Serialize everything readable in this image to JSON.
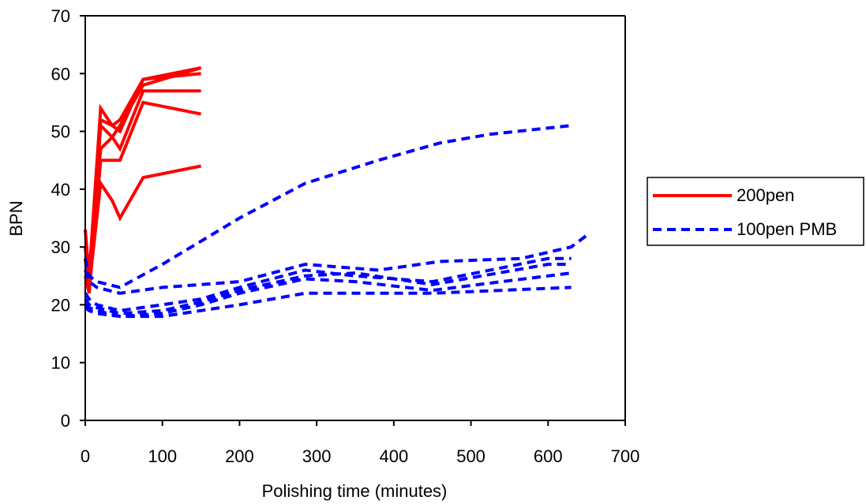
{
  "chart_data": {
    "type": "line",
    "title": "",
    "xlabel": "Polishing time (minutes)",
    "ylabel": "BPN",
    "xlim": [
      0,
      700
    ],
    "ylim": [
      0,
      70
    ],
    "x_ticks": [
      0,
      100,
      200,
      300,
      400,
      500,
      600,
      700
    ],
    "y_ticks": [
      0,
      10,
      20,
      30,
      40,
      50,
      60,
      70
    ],
    "grid": false,
    "legend_position": "right",
    "legend": [
      {
        "label": "200pen",
        "color": "#ff0000",
        "style": "solid"
      },
      {
        "label": "100pen PMB",
        "color": "#0000ff",
        "style": "dashed"
      }
    ],
    "series": [
      {
        "group": "200pen",
        "color": "#ff0000",
        "style": "solid",
        "x": [
          0,
          5,
          20,
          35,
          45,
          75,
          150
        ],
        "y": [
          33,
          25,
          54,
          51,
          50,
          59,
          61
        ]
      },
      {
        "group": "200pen",
        "color": "#ff0000",
        "style": "solid",
        "x": [
          0,
          5,
          20,
          35,
          45,
          75,
          150
        ],
        "y": [
          30,
          23,
          52,
          51,
          52,
          59,
          60
        ]
      },
      {
        "group": "200pen",
        "color": "#ff0000",
        "style": "solid",
        "x": [
          0,
          5,
          20,
          35,
          45,
          75,
          150
        ],
        "y": [
          28,
          22,
          51,
          49,
          51,
          58,
          61
        ]
      },
      {
        "group": "200pen",
        "color": "#ff0000",
        "style": "solid",
        "x": [
          0,
          5,
          20,
          35,
          45,
          75,
          150
        ],
        "y": [
          26,
          24,
          47,
          49,
          47,
          57,
          57
        ]
      },
      {
        "group": "200pen",
        "color": "#ff0000",
        "style": "solid",
        "x": [
          0,
          5,
          20,
          35,
          45,
          75,
          150
        ],
        "y": [
          25,
          22,
          45,
          45,
          45,
          55,
          53
        ]
      },
      {
        "group": "200pen",
        "color": "#ff0000",
        "style": "solid",
        "x": [
          0,
          5,
          20,
          35,
          45,
          75,
          150
        ],
        "y": [
          24,
          23,
          41,
          38,
          35,
          42,
          44
        ]
      },
      {
        "group": "100pen PMB",
        "color": "#0000ff",
        "style": "dashed",
        "x": [
          0,
          5,
          15,
          45,
          100,
          150,
          200,
          285,
          380,
          460,
          525,
          630
        ],
        "y": [
          28,
          25,
          24,
          23,
          27,
          31,
          35,
          41,
          45,
          48,
          49.5,
          51
        ]
      },
      {
        "group": "100pen PMB",
        "color": "#0000ff",
        "style": "dashed",
        "x": [
          0,
          5,
          15,
          45,
          100,
          150,
          200,
          285,
          380,
          460,
          565,
          630,
          650
        ],
        "y": [
          26,
          24,
          23,
          22,
          23,
          23.5,
          24,
          27,
          26,
          27.5,
          28,
          30,
          32
        ]
      },
      {
        "group": "100pen PMB",
        "color": "#0000ff",
        "style": "dashed",
        "x": [
          0,
          5,
          15,
          45,
          100,
          150,
          200,
          285,
          350,
          450,
          600,
          630
        ],
        "y": [
          22,
          21,
          20,
          19,
          20,
          21,
          23,
          26,
          25,
          24,
          28,
          28
        ]
      },
      {
        "group": "100pen PMB",
        "color": "#0000ff",
        "style": "dashed",
        "x": [
          0,
          5,
          15,
          45,
          100,
          150,
          200,
          285,
          350,
          450,
          600,
          630
        ],
        "y": [
          21,
          20,
          19.5,
          18.5,
          19,
          20.5,
          22.5,
          25,
          25.5,
          23.5,
          27,
          27
        ]
      },
      {
        "group": "100pen PMB",
        "color": "#0000ff",
        "style": "dashed",
        "x": [
          0,
          5,
          15,
          45,
          100,
          150,
          200,
          285,
          350,
          450,
          600,
          630
        ],
        "y": [
          20,
          19.5,
          19,
          18,
          18.5,
          20,
          22,
          24.5,
          24,
          22.5,
          25,
          25.5
        ]
      },
      {
        "group": "100pen PMB",
        "color": "#0000ff",
        "style": "dashed",
        "x": [
          0,
          5,
          15,
          45,
          100,
          150,
          200,
          285,
          450,
          630
        ],
        "y": [
          19.5,
          19,
          18.5,
          18,
          18,
          19,
          20,
          22,
          22,
          23
        ]
      }
    ]
  }
}
